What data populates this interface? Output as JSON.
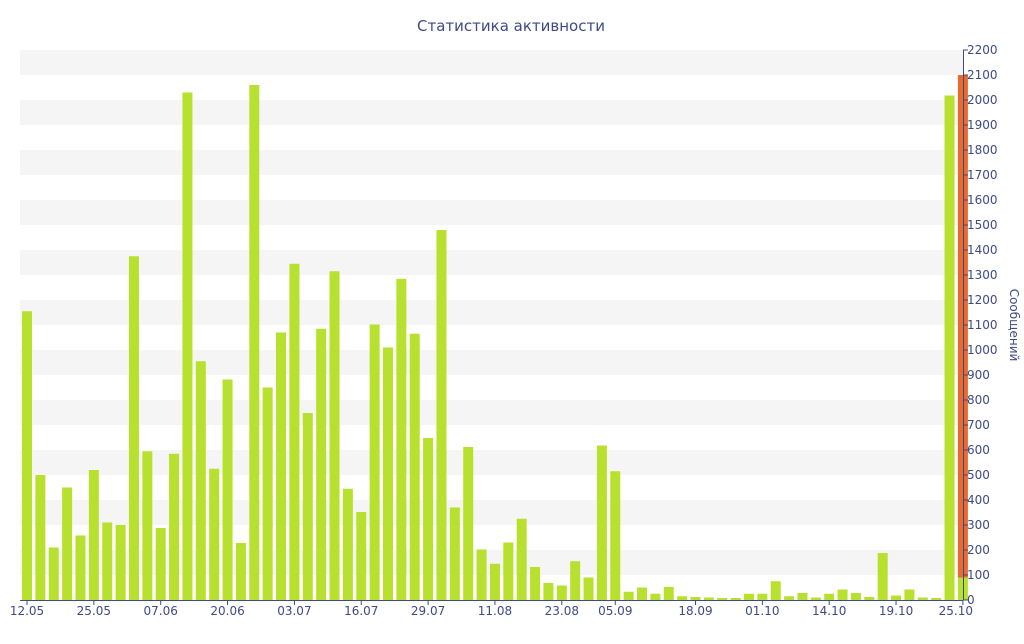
{
  "chart_data": {
    "type": "bar",
    "title": "Статистика активности",
    "ylabel": "Сообщений",
    "xlabel": "",
    "ylim": [
      0,
      2200
    ],
    "y_ticks": [
      0,
      100,
      200,
      300,
      400,
      500,
      600,
      700,
      800,
      900,
      1000,
      1100,
      1200,
      1300,
      1400,
      1500,
      1600,
      1700,
      1800,
      1900,
      2000,
      2100,
      2200
    ],
    "y_axis_side": "right",
    "x_tick_labels": [
      "12.05",
      "25.05",
      "07.06",
      "20.06",
      "03.07",
      "16.07",
      "29.07",
      "11.08",
      "23.08",
      "05.09",
      "18.09",
      "01.10",
      "14.10",
      "19.10",
      "25.10"
    ],
    "x_tick_positions": [
      0,
      5,
      10,
      15,
      20,
      25,
      30,
      35,
      40,
      44,
      50,
      55,
      60,
      65,
      70
    ],
    "grid": "alternating horizontal bands",
    "colors": {
      "bar": "#b8e02f",
      "highlight": "#e86a2c",
      "text": "#3e4a86",
      "band": "#f5f5f5"
    },
    "series": [
      {
        "values": [
          1155,
          500,
          210,
          450,
          258,
          520,
          310,
          300,
          1375,
          595,
          288,
          585,
          2030,
          955,
          525,
          882,
          228,
          2060,
          850,
          1070,
          1345,
          748,
          1085,
          1315,
          445,
          352,
          1102,
          1010,
          1285,
          1065,
          648,
          1480,
          370,
          612,
          202,
          145,
          230,
          325,
          132,
          68,
          58,
          155,
          90,
          618,
          515,
          33,
          50,
          25,
          52,
          15,
          12,
          10,
          8,
          8,
          25,
          25,
          75,
          15,
          28,
          10,
          25,
          42,
          28,
          12,
          188,
          18,
          42,
          10,
          8,
          2018,
          90
        ]
      },
      {
        "name": "",
        "values": [
          0,
          0,
          0,
          0,
          0,
          0,
          0,
          0,
          0,
          0,
          0,
          0,
          0,
          0,
          0,
          0,
          0,
          0,
          0,
          0,
          0,
          0,
          0,
          0,
          0,
          0,
          0,
          0,
          0,
          0,
          0,
          0,
          0,
          0,
          0,
          0,
          0,
          0,
          0,
          0,
          0,
          0,
          0,
          0,
          0,
          0,
          0,
          0,
          0,
          0,
          0,
          0,
          0,
          0,
          0,
          0,
          0,
          0,
          0,
          0,
          0,
          0,
          0,
          0,
          0,
          0,
          0,
          0,
          0,
          0,
          2010
        ]
      }
    ]
  }
}
